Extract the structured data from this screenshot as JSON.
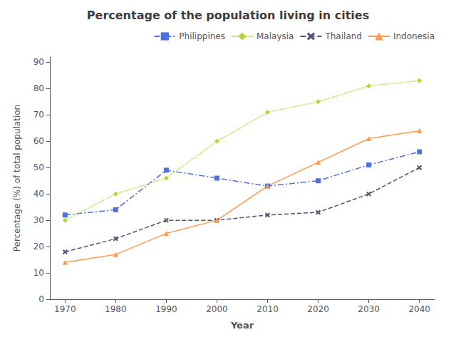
{
  "chart_data": {
    "type": "line",
    "title": "Percentage of the population living in cities",
    "xlabel": "Year",
    "ylabel": "Percentage (%) of total population",
    "x": [
      1970,
      1980,
      1990,
      2000,
      2010,
      2020,
      2030,
      2040
    ],
    "series": [
      {
        "name": "Philippines",
        "values": [
          32,
          34,
          49,
          46,
          43,
          45,
          51,
          56
        ],
        "marker": "square",
        "line_style": "dashdot"
      },
      {
        "name": "Malaysia",
        "values": [
          30,
          40,
          46,
          60,
          71,
          75,
          81,
          83
        ],
        "marker": "diamond",
        "line_style": "dotted"
      },
      {
        "name": "Thailand",
        "values": [
          18,
          23,
          30,
          30,
          32,
          33,
          40,
          50
        ],
        "marker": "x",
        "line_style": "dashed"
      },
      {
        "name": "Indonesia",
        "values": [
          14,
          17,
          25,
          30,
          43,
          52,
          61,
          64
        ],
        "marker": "triangle",
        "line_style": "solid"
      }
    ],
    "xlim": [
      1967,
      2043
    ],
    "xticks": [
      1970,
      1980,
      1990,
      2000,
      2010,
      2020,
      2030,
      2040
    ],
    "ylim": [
      0,
      92
    ],
    "yticks": [
      0,
      10,
      20,
      30,
      40,
      50,
      60,
      70,
      80,
      90
    ],
    "grid": false,
    "legend": "upper right"
  }
}
